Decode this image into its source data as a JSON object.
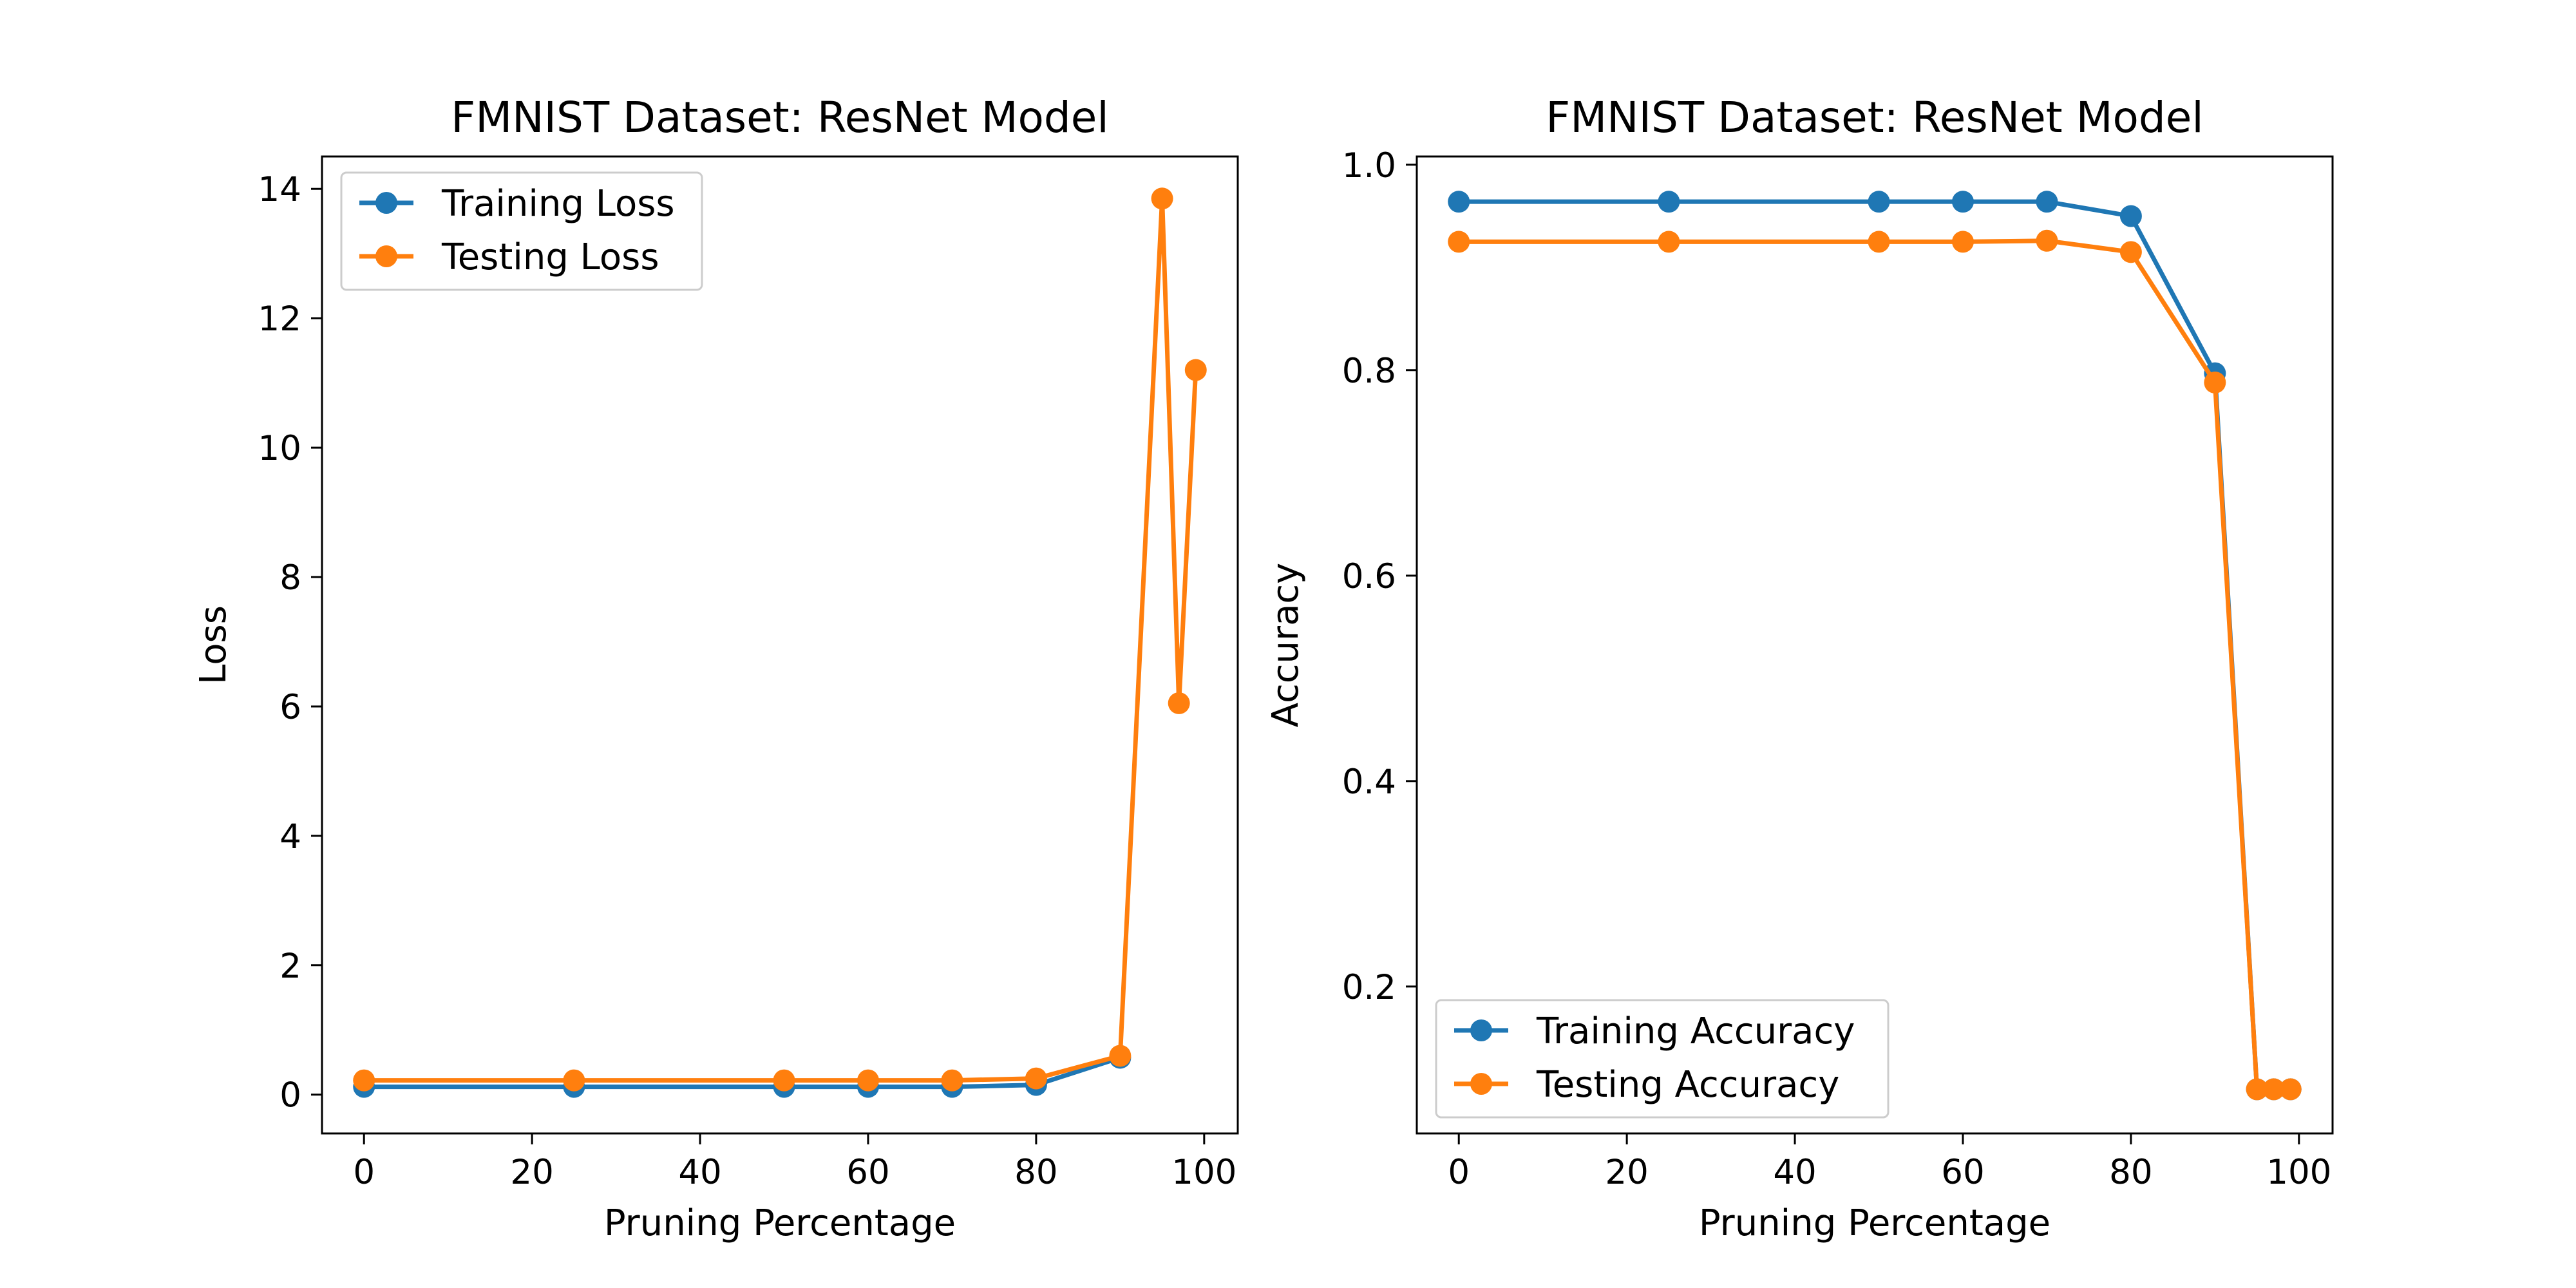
{
  "chart_data": [
    {
      "type": "line",
      "title": "FMNIST Dataset: ResNet Model",
      "xlabel": "Pruning Percentage",
      "ylabel": "Loss",
      "xlim": [
        -5,
        104
      ],
      "ylim": [
        -0.6,
        14.5
      ],
      "xticks": [
        0,
        20,
        40,
        60,
        80,
        100
      ],
      "yticks": [
        0,
        2,
        4,
        6,
        8,
        10,
        12,
        14
      ],
      "xtick_labels": [
        "0",
        "20",
        "40",
        "60",
        "80",
        "100"
      ],
      "ytick_labels": [
        "0",
        "2",
        "4",
        "6",
        "8",
        "10",
        "12",
        "14"
      ],
      "grid": false,
      "legend": "upper left",
      "x": [
        0,
        25,
        50,
        60,
        70,
        80,
        90,
        95,
        97,
        99
      ],
      "series": [
        {
          "name": "Training Loss",
          "color": "#1f77b4",
          "values": [
            0.12,
            0.12,
            0.12,
            0.12,
            0.12,
            0.15,
            0.57,
            null,
            null,
            null
          ]
        },
        {
          "name": "Testing Loss",
          "color": "#ff7f0e",
          "values": [
            0.22,
            0.22,
            0.22,
            0.22,
            0.22,
            0.25,
            0.6,
            13.85,
            6.05,
            11.2
          ]
        }
      ]
    },
    {
      "type": "line",
      "title": "FMNIST Dataset: ResNet Model",
      "xlabel": "Pruning Percentage",
      "ylabel": "Accuracy",
      "xlim": [
        -5,
        104
      ],
      "ylim": [
        0.057,
        1.008
      ],
      "xticks": [
        0,
        20,
        40,
        60,
        80,
        100
      ],
      "yticks": [
        0.2,
        0.4,
        0.6,
        0.8,
        1.0
      ],
      "xtick_labels": [
        "0",
        "20",
        "40",
        "60",
        "80",
        "100"
      ],
      "ytick_labels": [
        "0.2",
        "0.4",
        "0.6",
        "0.8",
        "1.0"
      ],
      "grid": false,
      "legend": "lower left",
      "x": [
        0,
        25,
        50,
        60,
        70,
        80,
        90,
        95,
        97,
        99
      ],
      "series": [
        {
          "name": "Training Accuracy",
          "color": "#1f77b4",
          "values": [
            0.964,
            0.964,
            0.964,
            0.964,
            0.964,
            0.95,
            0.797,
            0.1,
            0.1,
            0.1
          ]
        },
        {
          "name": "Testing Accuracy",
          "color": "#ff7f0e",
          "values": [
            0.925,
            0.925,
            0.925,
            0.925,
            0.926,
            0.915,
            0.788,
            0.1,
            0.1,
            0.1
          ]
        }
      ]
    }
  ]
}
